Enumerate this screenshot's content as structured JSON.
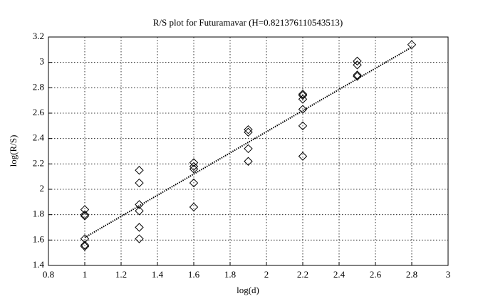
{
  "chart_data": {
    "type": "scatter",
    "title": "R/S plot for Futuramavar (H=0.821376110543513)",
    "xlabel": "log(d)",
    "ylabel": "log(R/S)",
    "xlim": [
      0.8,
      3
    ],
    "ylim": [
      1.4,
      3.2
    ],
    "xticks": [
      0.8,
      1,
      1.2,
      1.4,
      1.6,
      1.8,
      2,
      2.2,
      2.4,
      2.6,
      2.8,
      3
    ],
    "yticks": [
      1.4,
      1.6,
      1.8,
      2,
      2.2,
      2.4,
      2.6,
      2.8,
      3,
      3.2
    ],
    "grid": true,
    "series": [
      {
        "color": "#000000",
        "marker": "diamond",
        "x": [
          1,
          1,
          1,
          1,
          1,
          1,
          1.3,
          1.3,
          1.3,
          1.3,
          1.3,
          1.3,
          1.6,
          1.6,
          1.6,
          1.6,
          1.6,
          1.9,
          1.9,
          1.9,
          1.9,
          2.2,
          2.2,
          2.2,
          2.2,
          2.2,
          2.2,
          2.5,
          2.5,
          2.5,
          2.5,
          2.8
        ],
        "values": [
          1.84,
          1.8,
          1.79,
          1.61,
          1.56,
          1.55,
          2.15,
          2.05,
          1.88,
          1.83,
          1.7,
          1.61,
          2.21,
          2.18,
          2.16,
          2.05,
          1.86,
          2.47,
          2.45,
          2.32,
          2.22,
          2.75,
          2.74,
          2.71,
          2.63,
          2.5,
          2.26,
          3.01,
          2.98,
          2.9,
          2.89,
          3.14
        ]
      }
    ],
    "fit": {
      "color": "#000000",
      "style": "dotted",
      "x": [
        1,
        2.8
      ],
      "values": [
        1.62,
        3.12
      ]
    }
  }
}
